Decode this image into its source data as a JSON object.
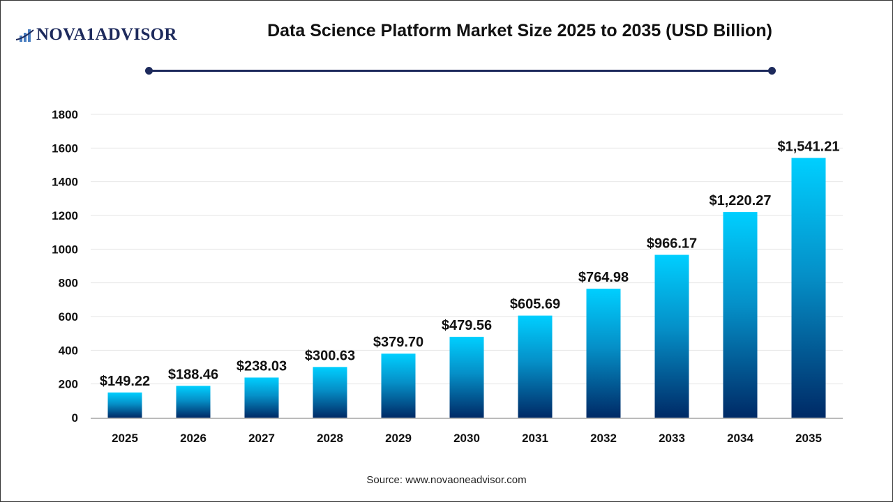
{
  "header": {
    "logo_text": "NOVA1ADVISOR",
    "title": "Data Science Platform Market Size 2025 to 2035 (USD Billion)"
  },
  "footer": {
    "source": "Source: www.novaoneadvisor.com"
  },
  "colors": {
    "bar_top": "#00cfff",
    "bar_bottom": "#002a66",
    "title_rule": "#1d2a5c",
    "grid": "#e6e6e6",
    "axis": "#bbbbbb"
  },
  "chart_data": {
    "type": "bar",
    "title": "Data Science Platform Market Size 2025 to 2035 (USD Billion)",
    "categories": [
      "2025",
      "2026",
      "2027",
      "2028",
      "2029",
      "2030",
      "2031",
      "2032",
      "2033",
      "2034",
      "2035"
    ],
    "values": [
      149.22,
      188.46,
      238.03,
      300.63,
      379.7,
      479.56,
      605.69,
      764.98,
      966.17,
      1220.27,
      1541.21
    ],
    "data_labels": [
      "$149.22",
      "$188.46",
      "$238.03",
      "$300.63",
      "$379.70",
      "$479.56",
      "$605.69",
      "$764.98",
      "$966.17",
      "$1,220.27",
      "$1,541.21"
    ],
    "yticks": [
      "0",
      "200",
      "400",
      "600",
      "800",
      "1000",
      "1200",
      "1400",
      "1600",
      "1800"
    ],
    "ylim": [
      0,
      1800
    ],
    "xlabel": "",
    "ylabel": "",
    "grid": true,
    "legend": "none"
  }
}
